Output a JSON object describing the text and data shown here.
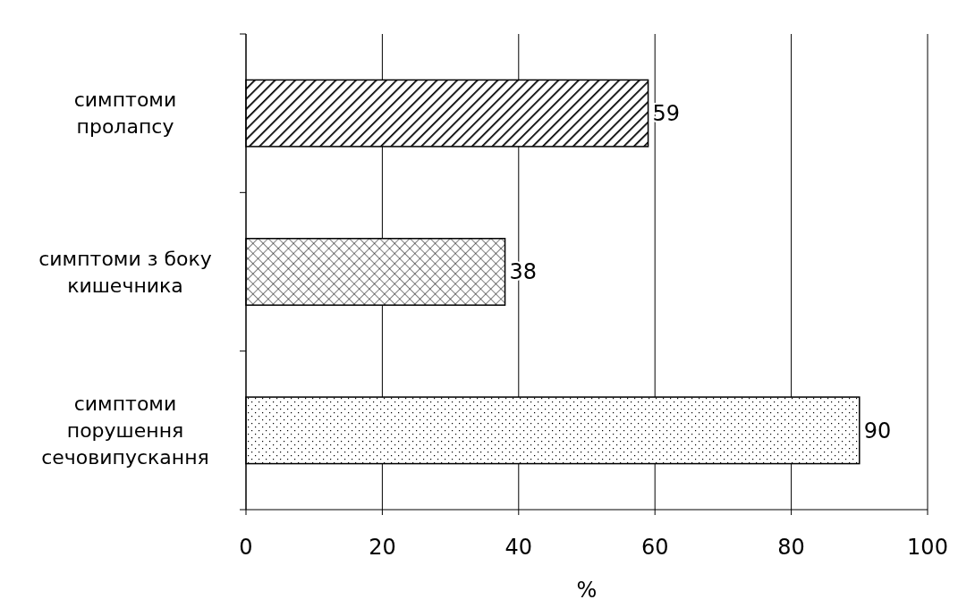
{
  "chart_data": {
    "type": "bar",
    "orientation": "horizontal",
    "categories": [
      "симптоми\nпролапсу",
      "симптоми з боку\nкишечника",
      "симптоми\nпорушення\nсечовипускання"
    ],
    "values": [
      59,
      38,
      90
    ],
    "xlim": [
      0,
      100
    ],
    "xticks": [
      0,
      20,
      40,
      60,
      80,
      100
    ],
    "xlabel": "%",
    "grid": "x",
    "data_labels": true
  }
}
